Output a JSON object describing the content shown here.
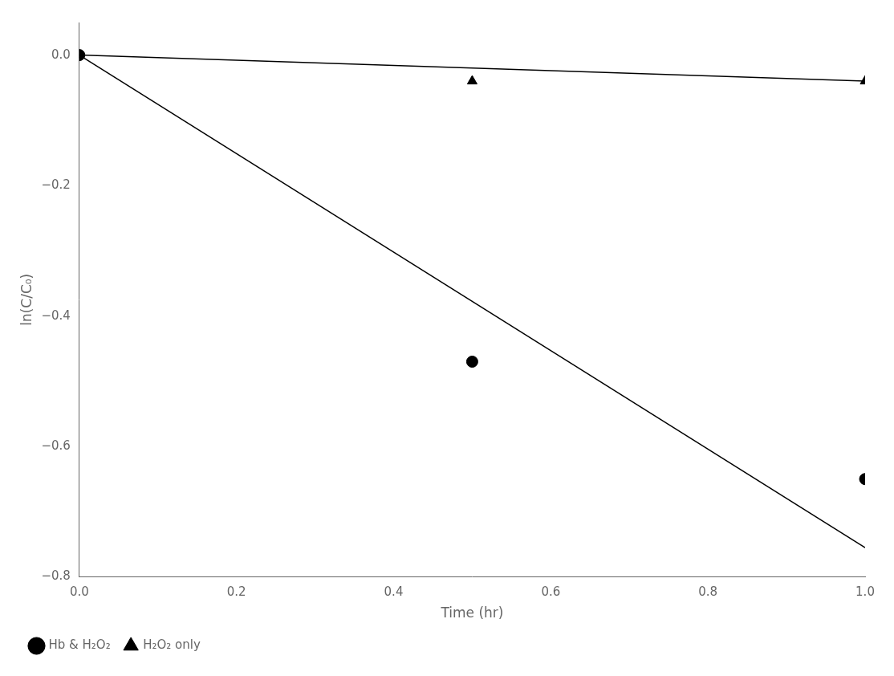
{
  "chart_data": {
    "type": "scatter",
    "xlabel": "Time (hr)",
    "ylabel": "ln(C/C₀)",
    "series": [
      {
        "type": "line",
        "color": "black",
        "x": [
          0,
          1.0
        ],
        "values": [
          0.0,
          -0.755
        ]
      },
      {
        "type": "line",
        "color": "black",
        "x": [
          0,
          1.0
        ],
        "values": [
          0.0,
          -0.04
        ]
      },
      {
        "name": "Hb & H₂O₂",
        "type": "scatter",
        "marker": "circle",
        "color": "black",
        "x": [
          0,
          0.5,
          1.0
        ],
        "values": [
          0.0,
          -0.47,
          -0.65
        ]
      },
      {
        "name": "H₂O₂ only",
        "type": "scatter",
        "marker": "triangle",
        "color": "black",
        "x": [
          0,
          0.5,
          1.0
        ],
        "values": [
          0.0,
          -0.04,
          -0.04
        ]
      }
    ],
    "xlim": [
      0.0,
      1.0
    ],
    "ylim": [
      -0.8,
      0.05
    ],
    "xticks": [
      {
        "value": 0,
        "label": "0.0"
      },
      0.2,
      0.4,
      0.6,
      0.8,
      {
        "value": 1,
        "label": "1.0"
      }
    ],
    "yticks": [
      {
        "value": 0,
        "label": "0.0"
      },
      {
        "value": -0.2,
        "label": "−0.2"
      },
      {
        "value": -0.4,
        "label": "−0.4"
      },
      {
        "value": -0.6,
        "label": "−0.6"
      },
      {
        "value": -0.8,
        "label": "−0.8"
      }
    ],
    "grid": false,
    "legend": "lower left"
  }
}
